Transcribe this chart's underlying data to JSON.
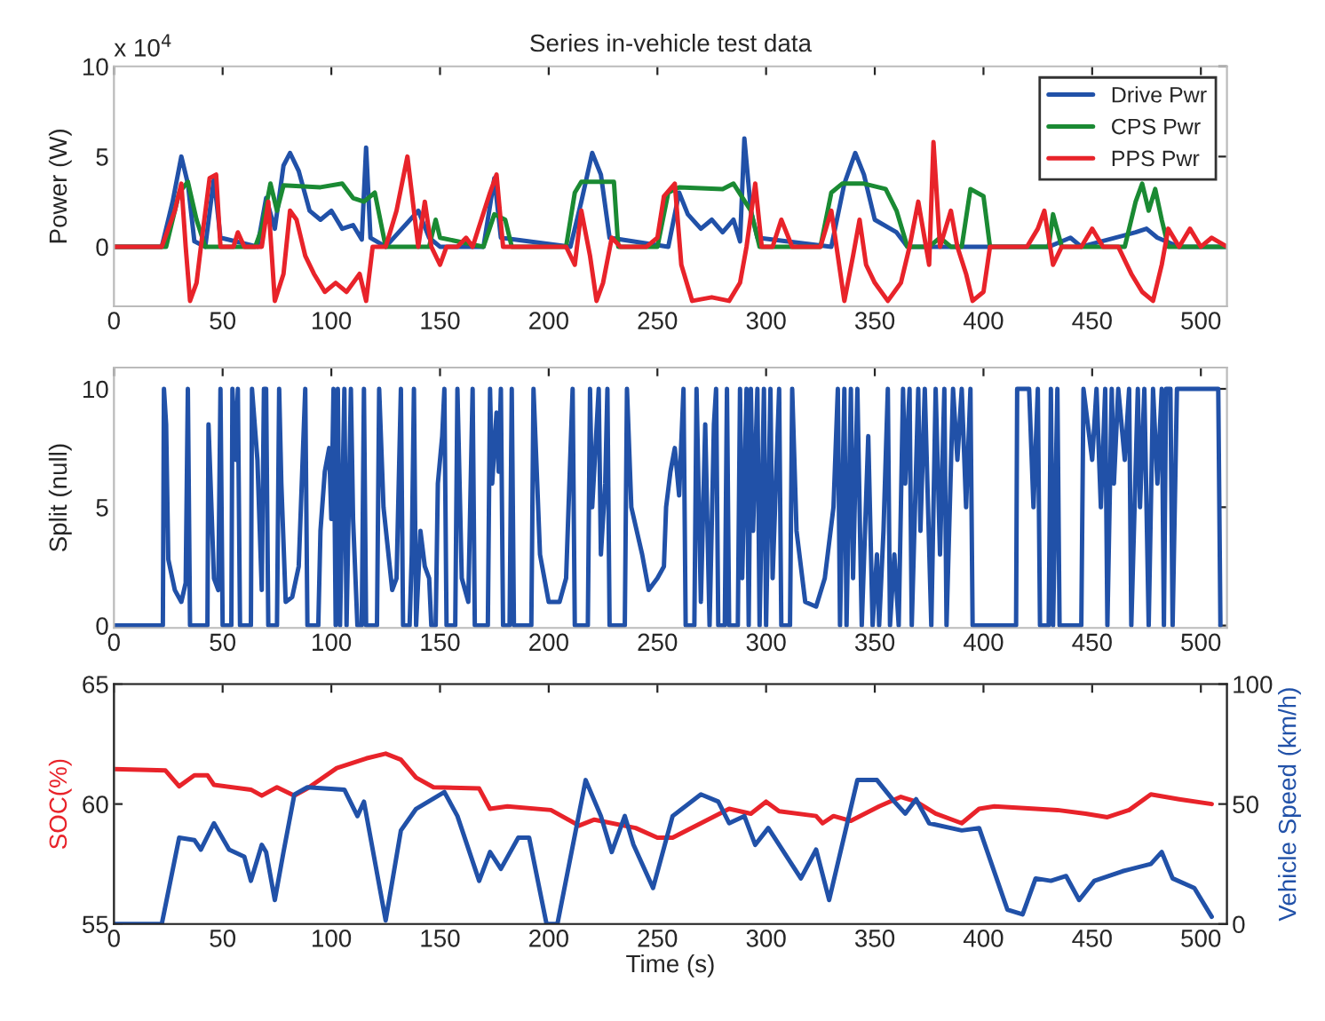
{
  "chart_data": [
    {
      "type": "line",
      "title": "Series in-vehicle test data",
      "ylabel": "Power (W)",
      "annotations": [
        "x 10$^{4}$"
      ],
      "legend": "top right",
      "xlim": [
        0,
        512
      ],
      "xticks": [
        0,
        50,
        100,
        150,
        200,
        250,
        300,
        350,
        400,
        450,
        500
      ],
      "ylim": [
        -3.3,
        10
      ],
      "yticks": [
        0,
        5,
        10
      ],
      "series": [
        {
          "name": "Drive Pwr",
          "color": "#2151a8",
          "x": [
            0,
            22,
            27,
            31,
            34,
            37,
            42,
            46,
            49,
            66,
            70,
            74,
            78,
            81,
            85,
            90,
            95,
            100,
            105,
            110,
            114,
            116,
            118,
            125,
            135,
            140,
            145,
            150,
            170,
            175,
            178,
            210,
            215,
            220,
            224,
            228,
            255,
            260,
            264,
            270,
            275,
            280,
            285,
            288,
            290,
            293,
            296,
            330,
            336,
            341,
            345,
            350,
            360,
            365,
            430,
            440,
            445,
            470,
            475,
            480,
            490,
            512
          ],
          "values": [
            0,
            0,
            2.5,
            5.0,
            3.5,
            0.3,
            0,
            3.8,
            0.5,
            0,
            2.7,
            1.0,
            4.5,
            5.2,
            4.2,
            2.0,
            1.5,
            2.0,
            1.0,
            1.2,
            0.4,
            5.5,
            0.5,
            0,
            null,
            2.0,
            0.5,
            0,
            0,
            3.8,
            0.5,
            0,
            2.5,
            5.2,
            4.0,
            0.5,
            0,
            3.0,
            1.8,
            1.0,
            1.5,
            0.8,
            1.5,
            0.3,
            6.0,
            2.0,
            0.5,
            0,
            3.5,
            5.2,
            4.0,
            1.5,
            0.8,
            0,
            0,
            0.5,
            0,
            0.8,
            1.0,
            0.5,
            0,
            0
          ]
        },
        {
          "name": "CPS Pwr",
          "color": "#1a8a33",
          "x": [
            0,
            24,
            26,
            30,
            34,
            38,
            42,
            65,
            68,
            72,
            75,
            78,
            95,
            105,
            110,
            115,
            120,
            125,
            145,
            148,
            150,
            170,
            175,
            180,
            183,
            208,
            212,
            215,
            230,
            232,
            250,
            255,
            260,
            280,
            285,
            293,
            297,
            325,
            330,
            335,
            345,
            355,
            360,
            365,
            375,
            380,
            385,
            390,
            394,
            400,
            403,
            430,
            432,
            436,
            465,
            470,
            473,
            476,
            479,
            482,
            485,
            512
          ],
          "values": [
            0,
            0,
            1.0,
            3.0,
            3.6,
            1.5,
            0,
            0,
            1.0,
            3.5,
            2.0,
            3.4,
            3.3,
            3.5,
            2.7,
            2.5,
            3.0,
            0,
            0,
            1.5,
            0.5,
            0,
            1.8,
            1.5,
            0,
            0,
            3.0,
            3.6,
            3.6,
            0,
            0,
            3.0,
            3.3,
            3.2,
            3.5,
            2.0,
            0,
            0,
            3.0,
            3.5,
            3.5,
            3.2,
            2.0,
            0,
            0,
            0.5,
            0,
            0,
            3.2,
            2.8,
            0,
            0,
            1.8,
            0,
            0,
            2.5,
            3.5,
            2.0,
            3.2,
            1.5,
            0,
            0
          ]
        },
        {
          "name": "PPS Pwr",
          "color": "#e8232a",
          "x": [
            0,
            22,
            28,
            31,
            33,
            35,
            38,
            40,
            44,
            47,
            49,
            55,
            57,
            60,
            68,
            71,
            74,
            78,
            81,
            84,
            88,
            92,
            97,
            102,
            107,
            113,
            116,
            119,
            125,
            130,
            135,
            137,
            140,
            143,
            146,
            150,
            153,
            158,
            162,
            165,
            173,
            176,
            179,
            208,
            212,
            215,
            219,
            222,
            225,
            229,
            233,
            245,
            250,
            253,
            258,
            261,
            266,
            275,
            283,
            288,
            291,
            295,
            298,
            303,
            307,
            312,
            325,
            330,
            333,
            336,
            340,
            343,
            346,
            350,
            356,
            362,
            366,
            370,
            375,
            377,
            380,
            385,
            388,
            392,
            395,
            400,
            403,
            420,
            425,
            428,
            432,
            436,
            445,
            450,
            455,
            462,
            468,
            473,
            478,
            482,
            485,
            490,
            495,
            500,
            505,
            512
          ],
          "values": [
            0,
            0,
            2.0,
            3.5,
            0,
            -3.0,
            -2.0,
            0,
            3.8,
            4.0,
            0,
            0,
            0.8,
            0,
            0,
            2.5,
            -3.0,
            -1.5,
            2.0,
            1.5,
            -0.5,
            -1.5,
            -2.5,
            -2.0,
            -2.5,
            -1.5,
            -3.0,
            0,
            0,
            2.0,
            5.0,
            3.0,
            0,
            2.5,
            0,
            -1.0,
            0,
            0,
            0.5,
            0,
            3.0,
            4.0,
            0,
            0,
            -1.0,
            2.0,
            -0.5,
            -3.0,
            -2.0,
            0.5,
            0,
            0,
            0.5,
            2.8,
            3.5,
            -1.0,
            -3.0,
            -2.8,
            -3.0,
            -2.0,
            0,
            3.5,
            0,
            0,
            1.5,
            0,
            0,
            2.0,
            -0.5,
            -3.0,
            -0.5,
            1.5,
            -1.0,
            -2.0,
            -3.0,
            -2.0,
            0,
            2.5,
            -1.0,
            5.8,
            0,
            2.0,
            0,
            -1.5,
            -3.0,
            -2.5,
            0,
            0,
            1.0,
            2.0,
            -1.0,
            0,
            0,
            1.0,
            0,
            0,
            -1.5,
            -2.5,
            -3.0,
            -1.0,
            1.0,
            0,
            1.0,
            0,
            0.5,
            0
          ]
        }
      ]
    },
    {
      "type": "line",
      "ylabel": "Split (null)",
      "xlim": [
        0,
        512
      ],
      "xticks": [
        0,
        50,
        100,
        150,
        200,
        250,
        300,
        350,
        400,
        450,
        500
      ],
      "ylim": [
        -0.1,
        10.9
      ],
      "yticks": [
        0,
        5,
        10
      ],
      "series": [
        {
          "color": "#2151a8",
          "x": [
            0,
            22.5,
            23,
            24,
            25,
            28,
            31,
            33,
            34,
            35,
            43,
            43.5,
            46,
            48,
            49,
            50,
            54,
            54.5,
            56,
            57,
            58,
            63,
            63.5,
            66,
            68,
            69,
            70,
            71,
            75,
            76,
            77,
            79,
            82,
            85,
            88,
            89,
            94,
            95,
            97,
            99,
            100,
            101,
            102,
            103,
            104,
            106,
            107,
            109,
            110,
            112,
            114,
            115,
            116,
            121,
            122,
            124,
            128,
            130,
            132,
            133,
            136,
            137,
            138,
            139,
            141,
            143,
            145,
            146,
            148,
            149,
            151,
            152,
            153,
            157,
            158,
            160,
            163,
            165,
            166,
            172,
            173,
            174,
            176,
            177,
            178,
            179,
            182,
            183,
            184,
            192,
            193,
            196,
            200,
            205,
            208,
            211,
            212,
            218,
            219,
            220,
            223,
            224,
            226,
            227,
            228,
            235,
            236,
            238,
            243,
            246,
            250,
            253,
            254,
            256,
            258,
            260,
            262,
            263,
            267,
            268,
            270,
            272,
            274,
            276,
            277,
            278,
            281,
            282,
            283,
            287,
            288,
            289,
            291,
            292,
            293,
            294,
            296,
            297,
            299,
            300,
            302,
            303,
            306,
            307,
            311,
            312,
            314,
            318,
            323,
            327,
            331,
            333,
            334,
            336,
            337,
            339,
            340,
            342,
            344,
            347,
            349,
            351,
            352,
            354,
            356,
            357,
            359,
            361,
            363,
            364,
            366,
            367,
            370,
            371,
            373,
            376,
            378,
            380,
            382,
            383,
            386,
            388,
            390,
            392,
            394,
            395,
            415,
            415.5,
            421,
            423,
            425,
            426,
            430,
            431,
            432,
            434,
            435,
            445,
            446,
            450,
            452,
            454,
            456,
            457,
            459,
            460,
            462,
            465,
            467,
            468,
            471,
            472,
            474,
            476,
            478,
            480,
            482,
            483,
            484,
            486,
            487,
            489,
            508,
            509
          ],
          "values": [
            0,
            0,
            10,
            8.5,
            2.8,
            1.5,
            1,
            1.8,
            10,
            0,
            0,
            8.5,
            2,
            1.5,
            10,
            0,
            0,
            10,
            7,
            10,
            0,
            0,
            10,
            7,
            1.5,
            10,
            10,
            0,
            0,
            10,
            6,
            1,
            1.2,
            2.5,
            10,
            0,
            0,
            4,
            6.5,
            7.5,
            4.5,
            10,
            0,
            10,
            0,
            10,
            0,
            10,
            4.5,
            0,
            0,
            10,
            0,
            0,
            10,
            5,
            1.5,
            2,
            10,
            0,
            0,
            3,
            10,
            0,
            4,
            2.5,
            2,
            0,
            0,
            6,
            8,
            10,
            0,
            0,
            10,
            2,
            1,
            10,
            0,
            0,
            10,
            6,
            9,
            6.5,
            10,
            0,
            0,
            10,
            0,
            0,
            10,
            3,
            1,
            1,
            2,
            10,
            0,
            0,
            10,
            5,
            10,
            3,
            6,
            10,
            0,
            0,
            10,
            5,
            3,
            1.5,
            2,
            2.5,
            5,
            6.5,
            7.5,
            5.5,
            10,
            0,
            0,
            10,
            1,
            8.5,
            0,
            8.5,
            10,
            0,
            0,
            10,
            0,
            0,
            10,
            2,
            10,
            0,
            10,
            4,
            10,
            0,
            10,
            0,
            10,
            2,
            10,
            0,
            0,
            10,
            4,
            1,
            0.8,
            2,
            5,
            10,
            0,
            10,
            0,
            10,
            2,
            10,
            0,
            8,
            0,
            3,
            0,
            4,
            10,
            0,
            3,
            0,
            10,
            6,
            10,
            0,
            10,
            4,
            10,
            0,
            10,
            3,
            10,
            0,
            10,
            7,
            10,
            5,
            10,
            0,
            0,
            10,
            10,
            5,
            10,
            0,
            0,
            10,
            0,
            10,
            0,
            0,
            10,
            7,
            10,
            5,
            10,
            0,
            10,
            6,
            10,
            7,
            10,
            0,
            10,
            5,
            10,
            0,
            10,
            6,
            10,
            0,
            10,
            10,
            0,
            10,
            10,
            0
          ]
        }
      ]
    },
    {
      "type": "line",
      "xlabel": "Time (s)",
      "ylabel": "SOC(%)",
      "y2label": "Vehicle Speed (km/h)",
      "xlim": [
        0,
        512
      ],
      "xticks": [
        0,
        50,
        100,
        150,
        200,
        250,
        300,
        350,
        400,
        450,
        500
      ],
      "ylim": [
        55,
        65
      ],
      "yticks": [
        55,
        60,
        65
      ],
      "y2lim": [
        0,
        100
      ],
      "y2ticks": [
        0,
        50,
        100
      ],
      "series": [
        {
          "color": "#e8232a",
          "x": [
            0,
            23.7,
            30,
            37,
            43,
            46,
            63,
            68,
            75,
            83,
            89,
            102.5,
            116,
            125,
            132,
            139,
            147,
            168,
            173,
            181,
            201,
            214,
            221,
            240,
            250,
            257,
            270,
            283,
            293,
            300,
            306,
            323,
            326,
            331,
            339,
            352,
            362,
            369,
            378,
            390,
            398,
            405,
            424,
            434,
            447,
            457,
            467,
            477,
            490,
            505
          ],
          "values": [
            61.46,
            61.4,
            60.74,
            61.2,
            61.2,
            60.8,
            60.6,
            60.35,
            60.7,
            60.35,
            60.65,
            61.5,
            61.9,
            62.1,
            61.85,
            61.1,
            60.7,
            60.65,
            59.8,
            59.9,
            59.75,
            59.1,
            59.35,
            59.0,
            58.6,
            58.6,
            59.2,
            59.8,
            59.6,
            60.1,
            59.7,
            59.5,
            59.2,
            59.5,
            59.3,
            59.9,
            60.3,
            60.1,
            59.6,
            59.2,
            59.8,
            59.9,
            59.8,
            59.75,
            59.6,
            59.45,
            59.75,
            60.4,
            60.2,
            60.0
          ]
        },
        {
          "color": "#2151a8",
          "axis": "y2",
          "x": [
            0,
            22,
            30,
            37,
            40,
            46,
            53,
            60,
            63,
            68,
            70,
            74,
            78,
            83,
            89,
            106,
            112,
            115,
            125,
            132,
            139,
            152,
            158,
            168,
            173,
            178,
            186,
            191,
            199,
            204,
            217,
            224,
            229,
            235,
            239,
            248,
            257,
            270,
            278,
            283,
            290,
            295,
            301,
            316,
            323,
            329,
            342,
            351,
            359,
            364,
            369,
            375,
            390,
            398,
            411,
            418,
            424,
            431,
            438,
            444,
            451,
            464,
            477,
            482,
            487,
            497,
            505
          ],
          "values": [
            0,
            0,
            36,
            35,
            31,
            42,
            31,
            28,
            18,
            33,
            30,
            10,
            30,
            54,
            57,
            56,
            45,
            51,
            1.5,
            39,
            48,
            55,
            45,
            18,
            30,
            23,
            36,
            36,
            0,
            0,
            60,
            45,
            30,
            45,
            33,
            15,
            45,
            54,
            51,
            42,
            45,
            33,
            40,
            19,
            31,
            10,
            60,
            60,
            51,
            46,
            52,
            42,
            39,
            40,
            6,
            4,
            19,
            18,
            20,
            10,
            18,
            22,
            25,
            30,
            19,
            15,
            3
          ]
        }
      ]
    }
  ]
}
